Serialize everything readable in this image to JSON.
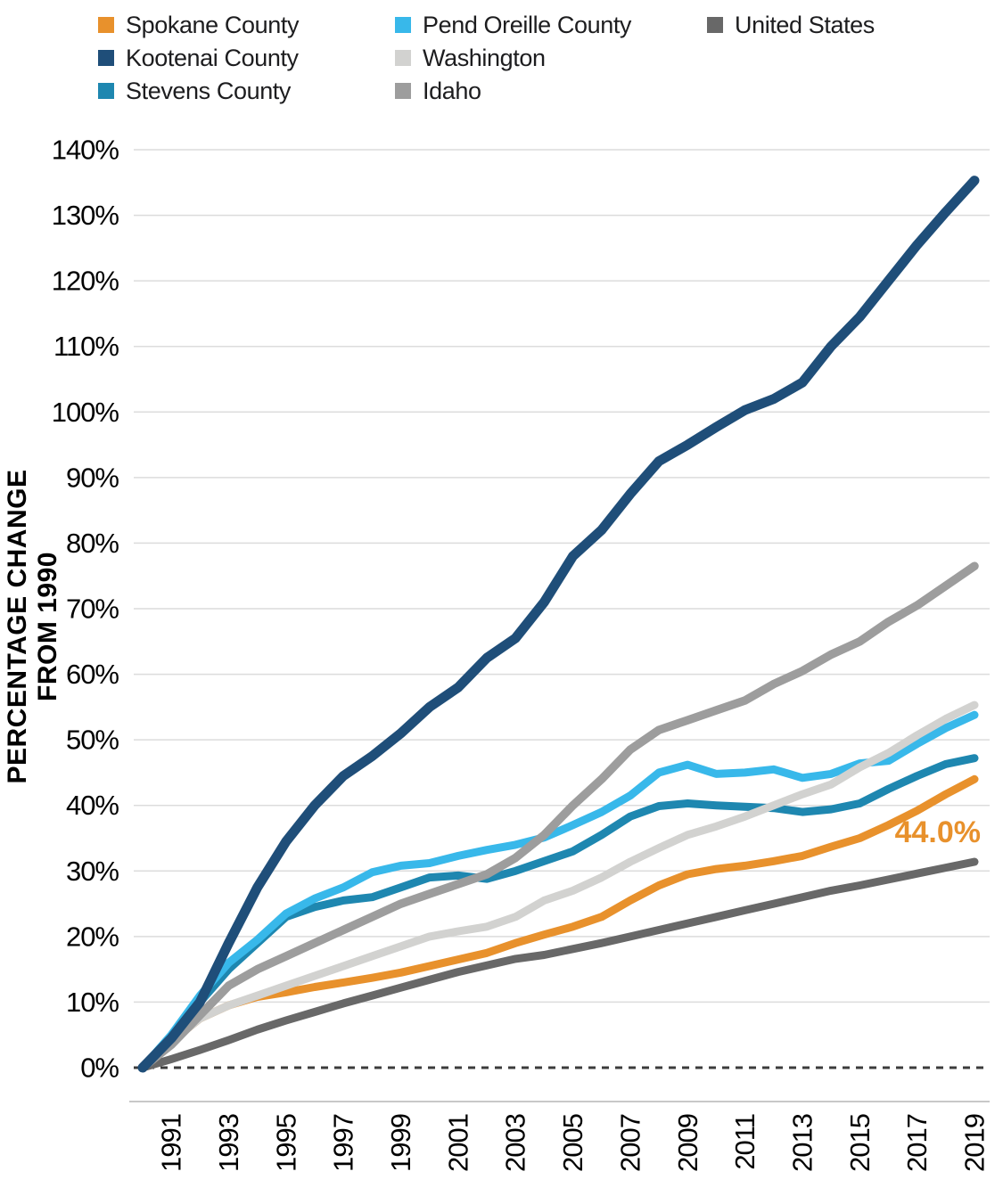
{
  "legend": {
    "items": [
      {
        "label": "Spokane County",
        "color": "#E8912C"
      },
      {
        "label": "Kootenai County",
        "color": "#1F4E79"
      },
      {
        "label": "Stevens County",
        "color": "#1E87B0"
      },
      {
        "label": "Pend Oreille County",
        "color": "#38B8EA"
      },
      {
        "label": "Washington",
        "color": "#D2D2D0"
      },
      {
        "label": "Idaho",
        "color": "#9D9D9D"
      },
      {
        "label": "United States",
        "color": "#686868"
      }
    ]
  },
  "y_axis": {
    "title": "PERCENTAGE CHANGE FROM 1990",
    "tick_labels": [
      "0%",
      "10%",
      "20%",
      "30%",
      "40%",
      "50%",
      "60%",
      "70%",
      "80%",
      "90%",
      "100%",
      "110%",
      "120%",
      "130%",
      "140%"
    ],
    "min": 0,
    "max": 140,
    "step": 10
  },
  "x_axis": {
    "tick_years": [
      1991,
      1993,
      1995,
      1997,
      1999,
      2001,
      2003,
      2005,
      2007,
      2009,
      2011,
      2013,
      2015,
      2017,
      2019
    ]
  },
  "annotation": {
    "text": "44.0%",
    "color": "#E8912C",
    "year": 2019,
    "value": 44.0
  },
  "chart_data": {
    "type": "line",
    "x_start": 1990,
    "x_end": 2019,
    "ylabel": "PERCENTAGE CHANGE FROM 1990",
    "ylim": [
      0,
      140
    ],
    "grid": true,
    "legend_position": "top",
    "series": [
      {
        "name": "United States",
        "color": "#686868",
        "width": 9,
        "values": [
          0,
          1.3,
          2.7,
          4.2,
          5.8,
          7.2,
          8.5,
          9.8,
          11,
          12.2,
          13.4,
          14.6,
          15.6,
          16.6,
          17.2,
          18.1,
          19,
          20,
          21,
          22,
          23,
          24,
          25,
          26,
          27,
          27.8,
          28.7,
          29.6,
          30.5,
          31.4
        ]
      },
      {
        "name": "Spokane County",
        "color": "#E8912C",
        "width": 9,
        "values": [
          0,
          4,
          7.5,
          9.5,
          10.8,
          11.5,
          12.3,
          13,
          13.7,
          14.5,
          15.5,
          16.5,
          17.5,
          19,
          20.3,
          21.5,
          23,
          25.5,
          27.8,
          29.5,
          30.3,
          30.8,
          31.5,
          32.3,
          33.7,
          35,
          37,
          39.2,
          41.7,
          44.0
        ]
      },
      {
        "name": "Stevens County",
        "color": "#1E87B0",
        "width": 9,
        "values": [
          0,
          4.5,
          10,
          15,
          19,
          23,
          24.5,
          25.5,
          26,
          27.5,
          29,
          29.3,
          28.8,
          30,
          31.5,
          33,
          35.5,
          38.3,
          39.9,
          40.3,
          40,
          39.8,
          39.6,
          39,
          39.4,
          40.3,
          42.5,
          44.5,
          46.3,
          47.2
        ]
      },
      {
        "name": "Pend Oreille County",
        "color": "#38B8EA",
        "width": 9,
        "values": [
          0,
          5,
          11,
          16,
          19.5,
          23.5,
          25.8,
          27.5,
          29.8,
          30.8,
          31.2,
          32.3,
          33.2,
          34,
          35.1,
          37,
          39,
          41.5,
          45,
          46.2,
          44.8,
          45,
          45.5,
          44.2,
          44.8,
          46.4,
          46.8,
          49.4,
          51.8,
          53.8
        ]
      },
      {
        "name": "Washington",
        "color": "#D2D2D0",
        "width": 9,
        "values": [
          0,
          4,
          7.5,
          9.5,
          11,
          12.5,
          14,
          15.5,
          17,
          18.5,
          20,
          20.8,
          21.5,
          23,
          25.5,
          27,
          29,
          31.4,
          33.5,
          35.5,
          36.8,
          38.3,
          40,
          41.7,
          43.2,
          45.8,
          48,
          50.7,
          53.2,
          55.3
        ]
      },
      {
        "name": "Idaho",
        "color": "#9D9D9D",
        "width": 9.5,
        "values": [
          0,
          3.5,
          8,
          12.5,
          15,
          17,
          19,
          21,
          23,
          25,
          26.5,
          28,
          29.5,
          32,
          35.5,
          40,
          44,
          48.5,
          51.5,
          53,
          54.5,
          56,
          58.5,
          60.5,
          63,
          65,
          68,
          70.5,
          73.5,
          76.5
        ]
      },
      {
        "name": "Kootenai County",
        "color": "#1F4E79",
        "width": 11,
        "values": [
          0,
          4.5,
          10,
          19,
          27.5,
          34.5,
          40,
          44.5,
          47.5,
          51,
          55,
          58,
          62.5,
          65.5,
          71,
          78,
          82,
          87.5,
          92.5,
          95,
          97.7,
          100.3,
          102,
          104.5,
          110,
          114.5,
          120,
          125.5,
          130.5,
          135.3
        ]
      }
    ]
  }
}
